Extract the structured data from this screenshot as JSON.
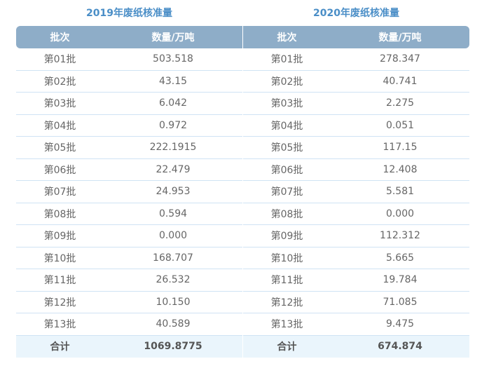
{
  "tables": [
    {
      "title": "2019年废纸核准量",
      "header": {
        "col1": "批次",
        "col2": "数量/万吨"
      },
      "rows": [
        {
          "batch": "第01批",
          "amount": "503.518"
        },
        {
          "batch": "第02批",
          "amount": "43.15"
        },
        {
          "batch": "第03批",
          "amount": "6.042"
        },
        {
          "batch": "第04批",
          "amount": "0.972"
        },
        {
          "batch": "第05批",
          "amount": "222.1915"
        },
        {
          "batch": "第06批",
          "amount": "22.479"
        },
        {
          "batch": "第07批",
          "amount": "24.953"
        },
        {
          "batch": "第08批",
          "amount": "0.594"
        },
        {
          "batch": "第09批",
          "amount": "0.000"
        },
        {
          "batch": "第10批",
          "amount": "168.707"
        },
        {
          "batch": "第11批",
          "amount": "26.532"
        },
        {
          "batch": "第12批",
          "amount": "10.150"
        },
        {
          "batch": "第13批",
          "amount": "40.589"
        }
      ],
      "total": {
        "label": "合计",
        "amount": "1069.8775"
      }
    },
    {
      "title": "2020年废纸核准量",
      "header": {
        "col1": "批次",
        "col2": "数量/万吨"
      },
      "rows": [
        {
          "batch": "第01批",
          "amount": "278.347"
        },
        {
          "batch": "第02批",
          "amount": "40.741"
        },
        {
          "batch": "第03批",
          "amount": "2.275"
        },
        {
          "batch": "第04批",
          "amount": "0.051"
        },
        {
          "batch": "第05批",
          "amount": "117.15"
        },
        {
          "batch": "第06批",
          "amount": "12.408"
        },
        {
          "batch": "第07批",
          "amount": "5.581"
        },
        {
          "batch": "第08批",
          "amount": "0.000"
        },
        {
          "batch": "第09批",
          "amount": "112.312"
        },
        {
          "batch": "第10批",
          "amount": "5.665"
        },
        {
          "batch": "第11批",
          "amount": "19.784"
        },
        {
          "batch": "第12批",
          "amount": "71.085"
        },
        {
          "batch": "第13批",
          "amount": "9.475"
        }
      ],
      "total": {
        "label": "合计",
        "amount": "674.874"
      }
    }
  ],
  "colors": {
    "title": "#4a8ec7",
    "header_bg": "#8eadc8",
    "row_border": "#cfe3f4",
    "total_bg": "#eaf5fc"
  }
}
